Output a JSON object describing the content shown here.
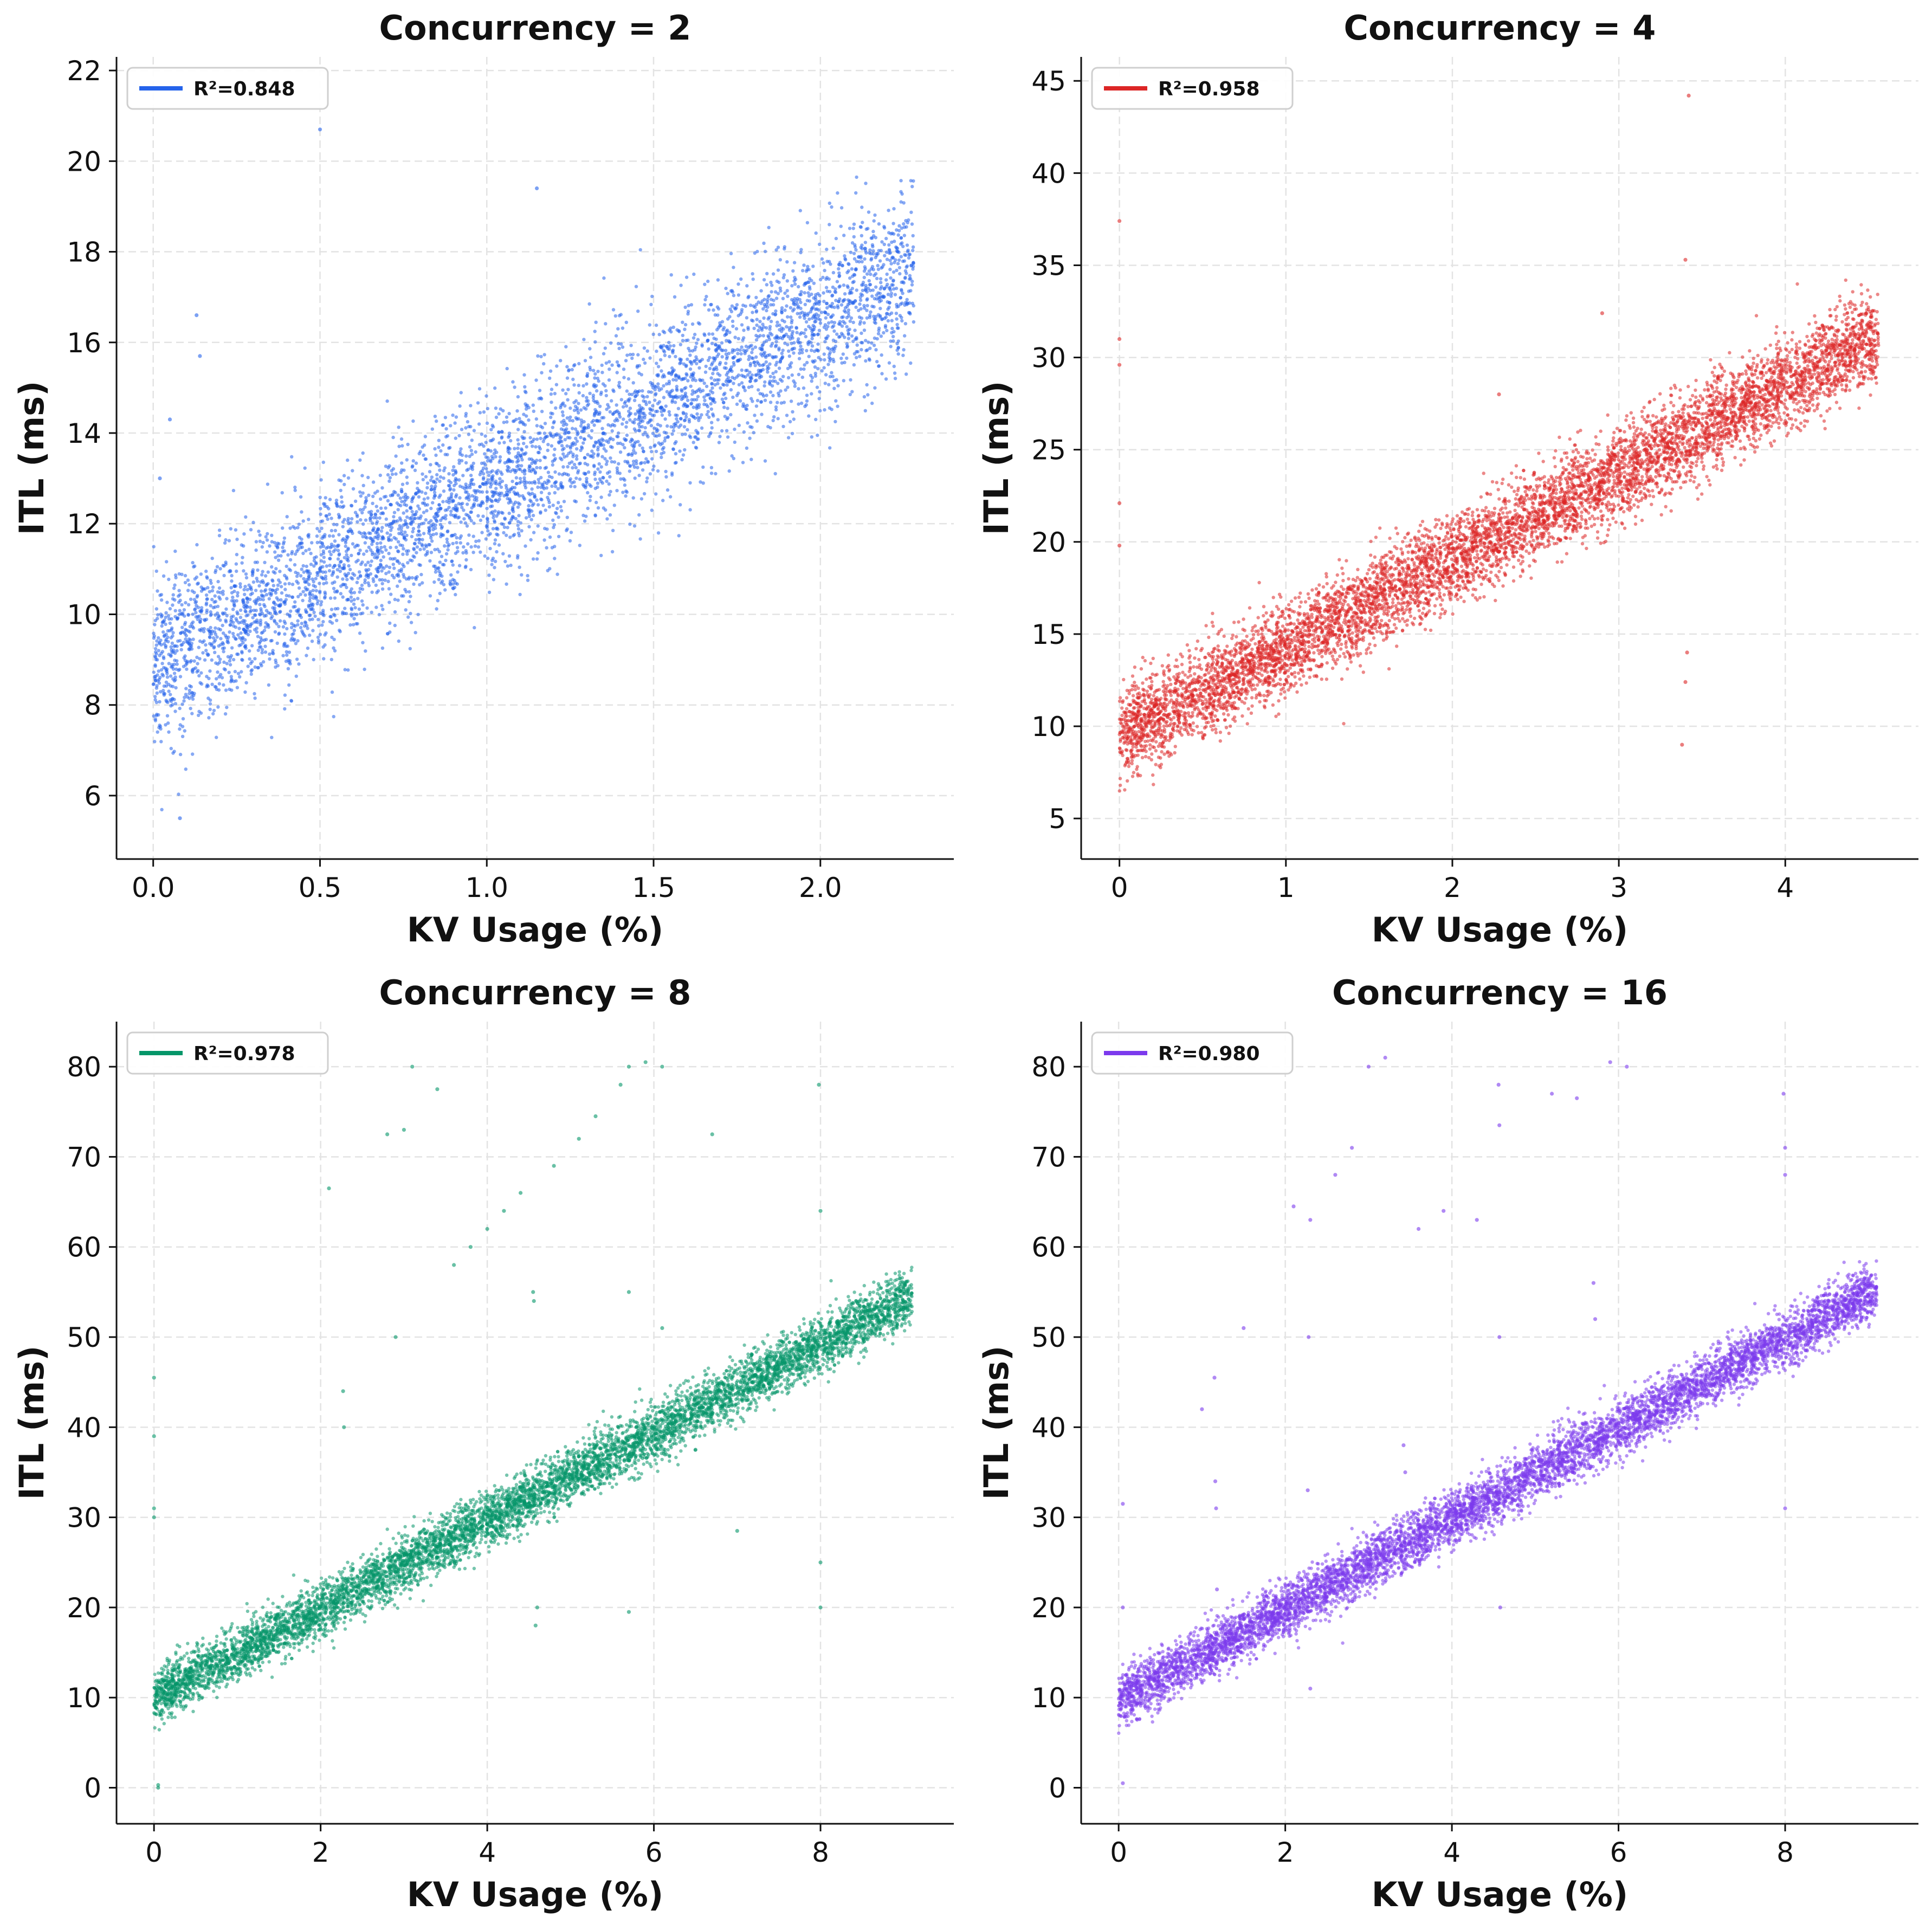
{
  "chart_data": [
    {
      "type": "scatter",
      "title": "Concurrency = 2",
      "xlabel": "KV Usage (%)",
      "ylabel": "ITL (ms)",
      "xlim": [
        -0.11,
        2.4
      ],
      "ylim": [
        4.6,
        22.3
      ],
      "xticks": [
        "0.0",
        "0.5",
        "1.0",
        "1.5",
        "2.0"
      ],
      "xtick_values": [
        0,
        0.5,
        1.0,
        1.5,
        2.0
      ],
      "yticks": [
        "6",
        "8",
        "10",
        "12",
        "14",
        "16",
        "18",
        "20",
        "22"
      ],
      "ytick_values": [
        6,
        8,
        10,
        12,
        14,
        16,
        18,
        20,
        22
      ],
      "grid": true,
      "legend": {
        "position": "top-left",
        "label": "R²=0.848"
      },
      "color": "#2563eb",
      "series": [
        {
          "point_cloud": {
            "x_min": 0,
            "x_max": 2.28,
            "intercept": 8.9,
            "slope": 3.8,
            "spread": 0.95,
            "count": 5000
          },
          "outliers": [
            [
              0.05,
              14.3
            ],
            [
              0.13,
              16.6
            ],
            [
              0.14,
              15.7
            ],
            [
              0.5,
              20.7
            ],
            [
              1.15,
              19.4
            ],
            [
              0.08,
              5.5
            ],
            [
              0.02,
              13.0
            ]
          ]
        }
      ]
    },
    {
      "type": "scatter",
      "title": "Concurrency = 4",
      "xlabel": "KV Usage (%)",
      "ylabel": "ITL (ms)",
      "xlim": [
        -0.23,
        4.8
      ],
      "ylim": [
        2.8,
        46.3
      ],
      "xticks": [
        "0",
        "1",
        "2",
        "3",
        "4"
      ],
      "xtick_values": [
        0,
        1,
        2,
        3,
        4
      ],
      "yticks": [
        "5",
        "10",
        "15",
        "20",
        "25",
        "30",
        "35",
        "40",
        "45"
      ],
      "ytick_values": [
        5,
        10,
        15,
        20,
        25,
        30,
        35,
        40,
        45
      ],
      "grid": true,
      "legend": {
        "position": "top-left",
        "label": "R²=0.958"
      },
      "color": "#dc2626",
      "series": [
        {
          "point_cloud": {
            "x_min": 0,
            "x_max": 4.56,
            "intercept": 9.5,
            "slope": 4.75,
            "spread": 1.2,
            "count": 7000
          },
          "outliers": [
            [
              0.0,
              37.4
            ],
            [
              0.0,
              31.0
            ],
            [
              0.0,
              29.6
            ],
            [
              0.0,
              22.1
            ],
            [
              0.0,
              19.8
            ],
            [
              3.42,
              44.2
            ],
            [
              3.4,
              35.3
            ],
            [
              3.41,
              14.0
            ],
            [
              3.4,
              12.4
            ],
            [
              3.38,
              9.0
            ],
            [
              2.9,
              32.4
            ],
            [
              2.28,
              28.0
            ]
          ]
        }
      ]
    },
    {
      "type": "scatter",
      "title": "Concurrency = 8",
      "xlabel": "KV Usage (%)",
      "ylabel": "ITL (ms)",
      "xlim": [
        -0.45,
        9.6
      ],
      "ylim": [
        -4.0,
        85.0
      ],
      "xticks": [
        "0",
        "2",
        "4",
        "6",
        "8"
      ],
      "xtick_values": [
        0,
        2,
        4,
        6,
        8
      ],
      "yticks": [
        "0",
        "10",
        "20",
        "30",
        "40",
        "50",
        "60",
        "70",
        "80"
      ],
      "ytick_values": [
        0,
        10,
        20,
        30,
        40,
        50,
        60,
        70,
        80
      ],
      "grid": true,
      "legend": {
        "position": "top-left",
        "label": "R²=0.978"
      },
      "color": "#059669",
      "series": [
        {
          "point_cloud": {
            "x_min": 0,
            "x_max": 9.1,
            "intercept": 10.0,
            "slope": 4.9,
            "spread": 1.5,
            "count": 7000
          },
          "outliers": [
            [
              0.0,
              45.5
            ],
            [
              0.0,
              39.0
            ],
            [
              0.0,
              31.0
            ],
            [
              0.0,
              30.0
            ],
            [
              0.05,
              0.3
            ],
            [
              0.05,
              0.0
            ],
            [
              2.1,
              66.5
            ],
            [
              2.27,
              44.0
            ],
            [
              2.28,
              40.0
            ],
            [
              2.8,
              72.5
            ],
            [
              3.0,
              73.0
            ],
            [
              3.1,
              80.0
            ],
            [
              3.4,
              77.5
            ],
            [
              2.9,
              50.0
            ],
            [
              3.6,
              58.0
            ],
            [
              3.8,
              60.0
            ],
            [
              4.0,
              62.0
            ],
            [
              4.2,
              64.0
            ],
            [
              4.4,
              66.0
            ],
            [
              4.55,
              55.0
            ],
            [
              4.56,
              54.0
            ],
            [
              4.58,
              18.0
            ],
            [
              4.6,
              20.0
            ],
            [
              4.8,
              69.0
            ],
            [
              5.1,
              72.0
            ],
            [
              5.3,
              74.5
            ],
            [
              5.6,
              78.0
            ],
            [
              5.7,
              80.0
            ],
            [
              5.9,
              80.5
            ],
            [
              6.1,
              80.0
            ],
            [
              5.7,
              55.0
            ],
            [
              5.7,
              19.5
            ],
            [
              6.1,
              51.0
            ],
            [
              6.7,
              72.5
            ],
            [
              7.0,
              28.5
            ],
            [
              7.98,
              78.0
            ],
            [
              8.0,
              64.0
            ],
            [
              8.0,
              25.0
            ],
            [
              8.0,
              20.0
            ],
            [
              6.5,
              37.5
            ]
          ]
        }
      ]
    },
    {
      "type": "scatter",
      "title": "Concurrency = 16",
      "xlabel": "KV Usage (%)",
      "ylabel": "ITL (ms)",
      "xlim": [
        -0.45,
        9.6
      ],
      "ylim": [
        -4.0,
        85.0
      ],
      "xticks": [
        "0",
        "2",
        "4",
        "6",
        "8"
      ],
      "xtick_values": [
        0,
        2,
        4,
        6,
        8
      ],
      "yticks": [
        "0",
        "10",
        "20",
        "30",
        "40",
        "50",
        "60",
        "70",
        "80"
      ],
      "ytick_values": [
        0,
        10,
        20,
        30,
        40,
        50,
        60,
        70,
        80
      ],
      "grid": true,
      "legend": {
        "position": "top-left",
        "label": "R²=0.980"
      },
      "color": "#7c3aed",
      "series": [
        {
          "point_cloud": {
            "x_min": 0,
            "x_max": 9.1,
            "intercept": 9.8,
            "slope": 5.0,
            "spread": 1.5,
            "count": 7000
          },
          "outliers": [
            [
              0.05,
              31.5
            ],
            [
              0.05,
              20.0
            ],
            [
              0.05,
              0.5
            ],
            [
              1.0,
              42.0
            ],
            [
              1.15,
              45.5
            ],
            [
              1.16,
              34.0
            ],
            [
              1.17,
              31.0
            ],
            [
              1.18,
              22.0
            ],
            [
              1.5,
              51.0
            ],
            [
              2.1,
              64.5
            ],
            [
              2.3,
              63.0
            ],
            [
              2.28,
              50.0
            ],
            [
              2.27,
              33.0
            ],
            [
              2.3,
              11.0
            ],
            [
              2.6,
              68.0
            ],
            [
              2.8,
              71.0
            ],
            [
              3.0,
              80.0
            ],
            [
              3.2,
              81.0
            ],
            [
              3.42,
              38.0
            ],
            [
              3.44,
              35.0
            ],
            [
              3.6,
              62.0
            ],
            [
              3.9,
              64.0
            ],
            [
              4.3,
              63.0
            ],
            [
              4.56,
              78.0
            ],
            [
              4.57,
              73.5
            ],
            [
              4.57,
              50.0
            ],
            [
              4.58,
              20.0
            ],
            [
              5.2,
              77.0
            ],
            [
              5.5,
              76.5
            ],
            [
              5.7,
              56.0
            ],
            [
              5.72,
              52.0
            ],
            [
              5.9,
              80.5
            ],
            [
              6.1,
              80.0
            ],
            [
              7.98,
              77.0
            ],
            [
              8.0,
              71.0
            ],
            [
              8.0,
              68.0
            ],
            [
              8.0,
              31.0
            ]
          ]
        }
      ]
    }
  ]
}
